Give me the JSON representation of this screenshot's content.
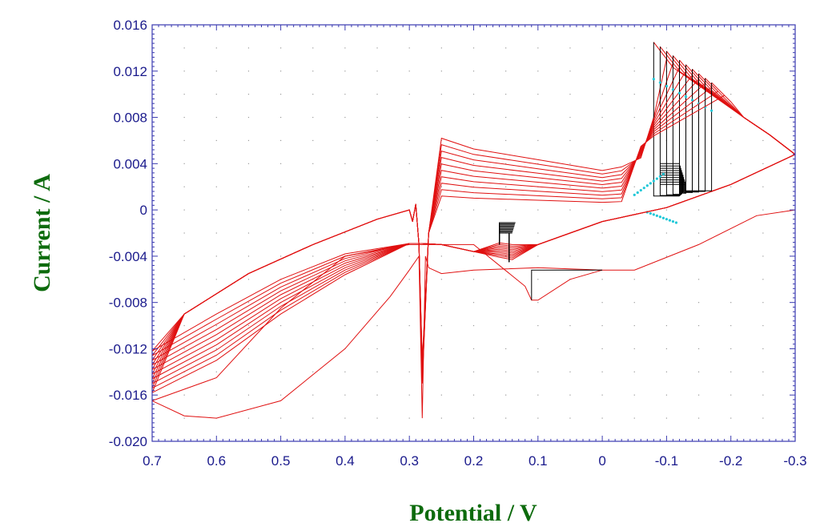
{
  "chart_data": {
    "type": "line",
    "title": "",
    "xlabel": "Potential / V",
    "ylabel": "Current / A",
    "x_reversed": true,
    "xlim": [
      0.7,
      -0.3
    ],
    "ylim": [
      -0.02,
      0.016
    ],
    "x_ticks": [
      "0.7",
      "0.6",
      "0.5",
      "0.4",
      "0.3",
      "0.2",
      "0.1",
      "0",
      "-0.1",
      "-0.2",
      "-0.3"
    ],
    "y_ticks": [
      "0.016",
      "0.012",
      "0.008",
      "0.004",
      "0",
      "-0.004",
      "-0.008",
      "-0.012",
      "-0.016",
      "-0.020"
    ],
    "grid": "dotted",
    "legend": "none",
    "colors": {
      "cv_cycles": "#e01010",
      "step_segments": "#000000",
      "markers": "#20c8d8",
      "xlabel": "#0d6b0d",
      "ylabel": "#0d6b0d",
      "axis": "#1a1a8c"
    },
    "cycle_count": 10,
    "series": [
      {
        "kind": "first-scan",
        "color": "#e01010",
        "x": [
          0.0,
          -0.05,
          -0.15,
          -0.24,
          -0.3
        ],
        "y": [
          -0.0052,
          -0.0052,
          -0.003,
          -0.0005,
          0.0
        ]
      },
      {
        "kind": "first-scan",
        "color": "#e01010",
        "x": [
          0.0,
          0.05,
          0.1,
          0.11,
          0.12,
          0.2,
          0.25,
          0.28,
          0.3,
          0.4,
          0.5,
          0.6,
          0.7
        ],
        "y": [
          -0.0052,
          -0.006,
          -0.0078,
          -0.0078,
          -0.0066,
          -0.003,
          -0.003,
          -0.003,
          -0.003,
          -0.004,
          -0.0085,
          -0.0145,
          -0.0165
        ]
      },
      {
        "kind": "first-scan",
        "color": "#e01010",
        "x": [
          0.7,
          0.65,
          0.6,
          0.5,
          0.4,
          0.33,
          0.3,
          0.285,
          0.28,
          0.275,
          0.27,
          0.25,
          0.2,
          0.1,
          0.0
        ],
        "y": [
          -0.0165,
          -0.0178,
          -0.018,
          -0.0165,
          -0.012,
          -0.0075,
          -0.0052,
          -0.004,
          -0.018,
          -0.004,
          -0.005,
          -0.0055,
          -0.0052,
          -0.005,
          -0.0052
        ]
      },
      {
        "kind": "step-segment",
        "color": "#000000",
        "x": [
          0.0,
          0.11,
          0.11
        ],
        "y": [
          -0.0052,
          -0.0052,
          -0.0078
        ]
      }
    ]
  }
}
